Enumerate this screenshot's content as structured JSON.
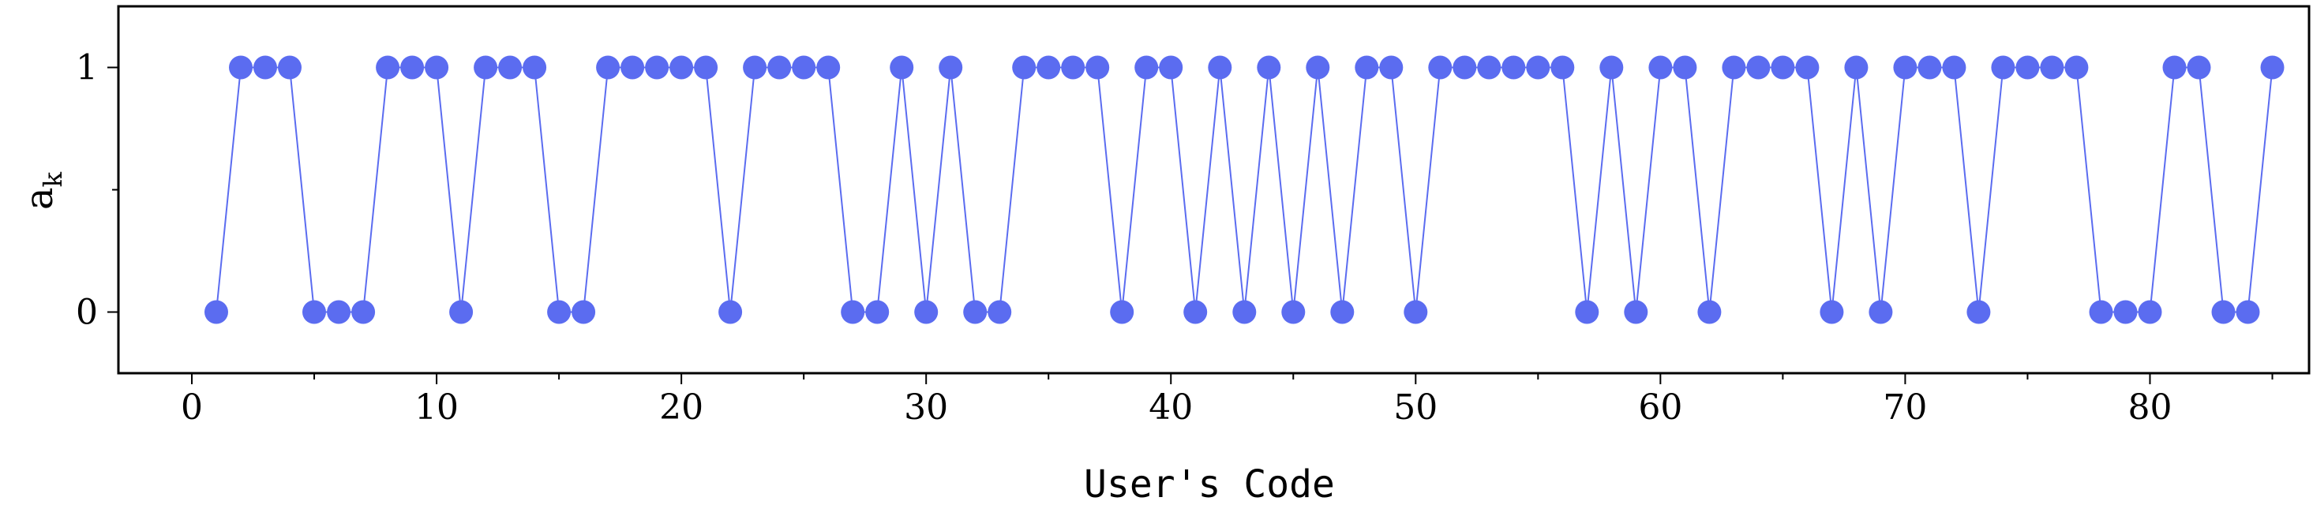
{
  "chart_data": {
    "type": "line",
    "title": "",
    "xlabel": "User's Code",
    "ylabel": "a",
    "ylabel_subscript": "k",
    "xlim": [
      -3,
      86.5
    ],
    "ylim": [
      -0.25,
      1.25
    ],
    "xticks": [
      0,
      10,
      20,
      30,
      40,
      50,
      60,
      70,
      80
    ],
    "xtick_labels": [
      "0",
      "10",
      "20",
      "30",
      "40",
      "50",
      "60",
      "70",
      "80"
    ],
    "yticks": [
      0,
      1
    ],
    "ytick_labels": [
      "0",
      "1"
    ],
    "x_minor_step": 5,
    "y_minor_step": 0.5,
    "marker": "circle",
    "color": "#5b6cf0",
    "grid": false,
    "legend": "none",
    "series": [
      {
        "x": [
          1,
          2,
          3,
          4,
          5,
          6,
          7,
          8,
          9,
          10,
          11,
          12,
          13,
          14,
          15,
          16,
          17,
          18,
          19,
          20,
          21,
          22,
          23,
          24,
          25,
          26,
          27,
          28,
          29,
          30,
          31,
          32,
          33,
          34,
          35,
          36,
          37,
          38,
          39,
          40,
          41,
          42,
          43,
          44,
          45,
          46,
          47,
          48,
          49,
          50,
          51,
          52,
          53,
          54,
          55,
          56,
          57,
          58,
          59,
          60,
          61,
          62,
          63,
          64,
          65,
          66,
          67,
          68,
          69,
          70,
          71,
          72,
          73,
          74,
          75,
          76,
          77,
          78,
          79,
          80,
          81,
          82,
          83,
          84,
          85
        ],
        "values": [
          0,
          1,
          1,
          1,
          0,
          0,
          0,
          1,
          1,
          1,
          0,
          1,
          1,
          1,
          0,
          0,
          1,
          1,
          1,
          1,
          1,
          0,
          1,
          1,
          1,
          1,
          0,
          0,
          1,
          0,
          1,
          0,
          0,
          1,
          1,
          1,
          1,
          0,
          1,
          1,
          0,
          1,
          0,
          1,
          0,
          1,
          0,
          1,
          1,
          0,
          1,
          1,
          1,
          1,
          1,
          1,
          0,
          1,
          0,
          1,
          1,
          0,
          1,
          1,
          1,
          1,
          0,
          1,
          0,
          1,
          1,
          1,
          0,
          1,
          1,
          1,
          1,
          0,
          0,
          0,
          1,
          1,
          0,
          0,
          1
        ]
      }
    ]
  }
}
